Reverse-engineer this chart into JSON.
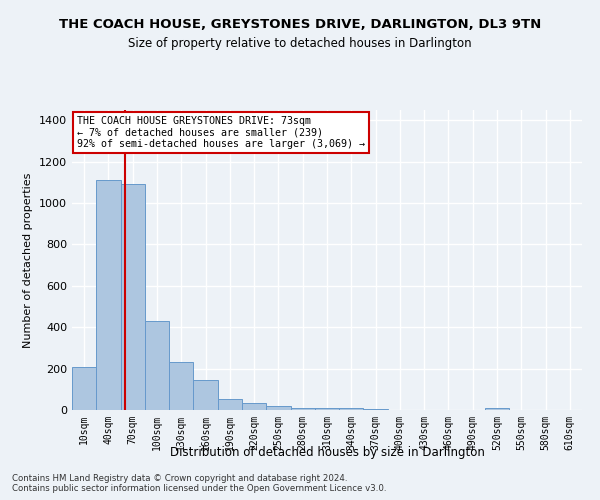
{
  "title": "THE COACH HOUSE, GREYSTONES DRIVE, DARLINGTON, DL3 9TN",
  "subtitle": "Size of property relative to detached houses in Darlington",
  "xlabel": "Distribution of detached houses by size in Darlington",
  "ylabel": "Number of detached properties",
  "footnote1": "Contains HM Land Registry data © Crown copyright and database right 2024.",
  "footnote2": "Contains public sector information licensed under the Open Government Licence v3.0.",
  "categories": [
    "10sqm",
    "40sqm",
    "70sqm",
    "100sqm",
    "130sqm",
    "160sqm",
    "190sqm",
    "220sqm",
    "250sqm",
    "280sqm",
    "310sqm",
    "340sqm",
    "370sqm",
    "400sqm",
    "430sqm",
    "460sqm",
    "490sqm",
    "520sqm",
    "550sqm",
    "580sqm",
    "610sqm"
  ],
  "values": [
    210,
    1110,
    1090,
    430,
    230,
    145,
    55,
    35,
    20,
    10,
    10,
    10,
    5,
    0,
    0,
    0,
    0,
    10,
    0,
    0,
    0
  ],
  "bar_color": "#adc6e0",
  "bar_edge_color": "#6699cc",
  "property_line_x": 1.67,
  "property_size": "73sqm",
  "pct_smaller": "7%",
  "n_smaller": 239,
  "pct_larger_semi": "92%",
  "n_larger_semi": "3,069",
  "annotation_box_color": "#ffffff",
  "annotation_box_edge_color": "#cc0000",
  "vline_color": "#cc0000",
  "bg_color": "#edf2f7",
  "grid_color": "#ffffff",
  "ylim": [
    0,
    1450
  ],
  "yticks": [
    0,
    200,
    400,
    600,
    800,
    1000,
    1200,
    1400
  ]
}
